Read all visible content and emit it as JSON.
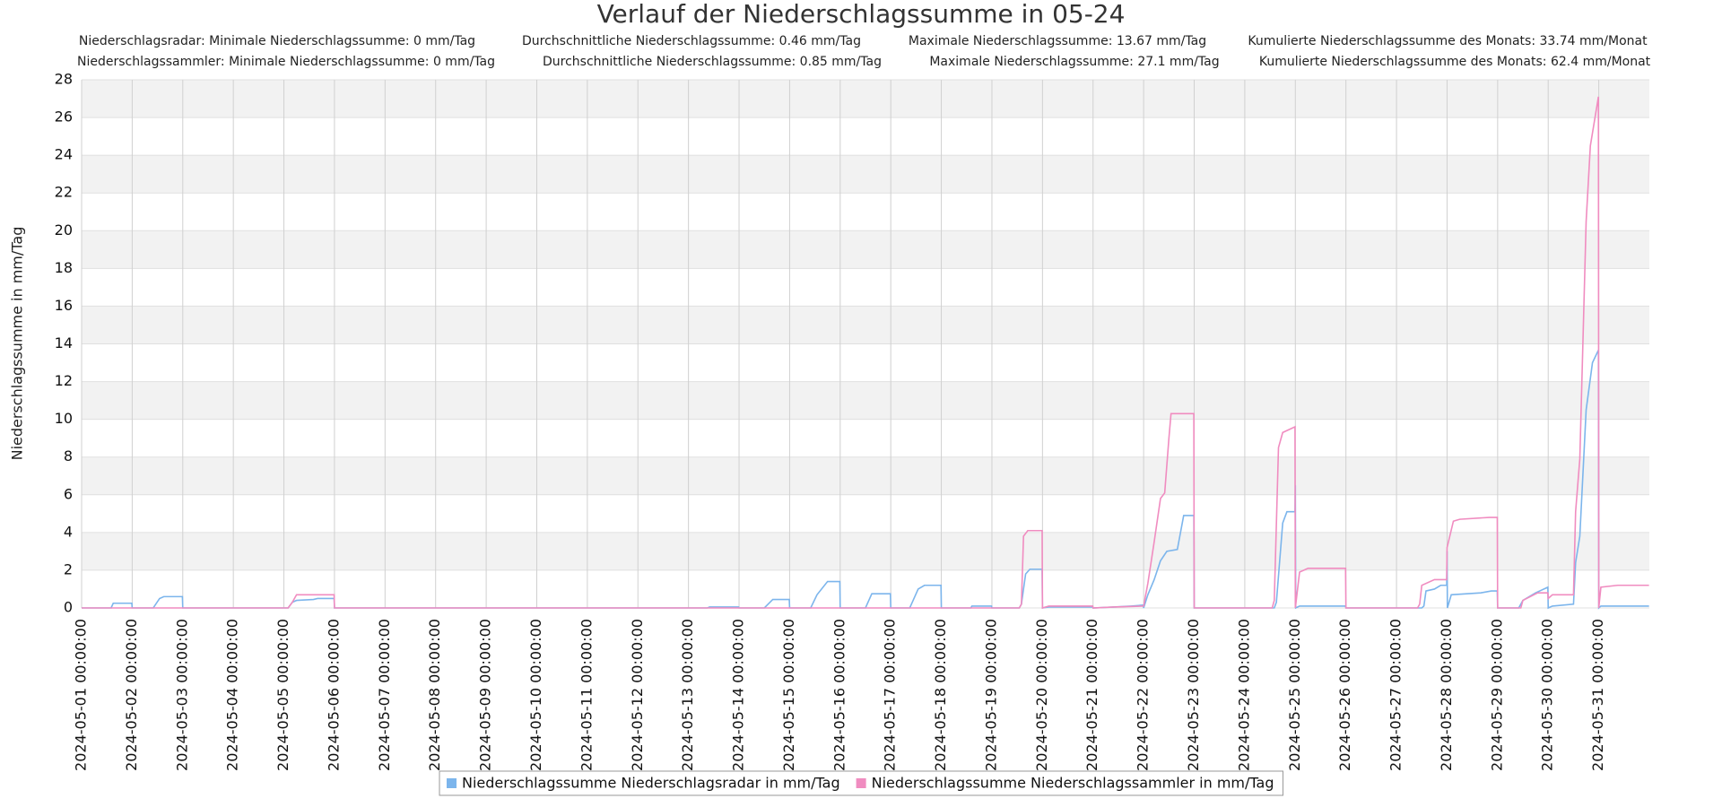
{
  "chart_data": {
    "type": "line",
    "title": "Verlauf der Niederschlagssumme in 05-24",
    "subtitle_lines": [
      [
        "Niederschlagsradar: Minimale Niederschlagssumme: 0 mm/Tag",
        "Durchschnittliche Niederschlagssumme: 0.46 mm/Tag",
        "Maximale Niederschlagssumme: 13.67 mm/Tag",
        "Kumulierte Niederschlagssumme des Monats: 33.74 mm/Monat"
      ],
      [
        "Niederschlagssammler: Minimale Niederschlagssumme: 0 mm/Tag",
        "Durchschnittliche Niederschlagssumme: 0.85 mm/Tag",
        "Maximale Niederschlagssumme: 27.1 mm/Tag",
        "Kumulierte Niederschlagssumme des Monats: 62.4 mm/Monat"
      ]
    ],
    "y_label": "Niederschlagssumme in mm/Tag",
    "ylim": [
      0,
      28
    ],
    "yticks": [
      0,
      2,
      4,
      6,
      8,
      10,
      12,
      14,
      16,
      18,
      20,
      22,
      24,
      26,
      28
    ],
    "xlim": [
      "2024-05-01 00:00:00",
      "2024-06-01 00:00:00"
    ],
    "xticks": [
      "2024-05-01 00:00:00",
      "2024-05-02 00:00:00",
      "2024-05-03 00:00:00",
      "2024-05-04 00:00:00",
      "2024-05-05 00:00:00",
      "2024-05-06 00:00:00",
      "2024-05-07 00:00:00",
      "2024-05-08 00:00:00",
      "2024-05-09 00:00:00",
      "2024-05-10 00:00:00",
      "2024-05-11 00:00:00",
      "2024-05-12 00:00:00",
      "2024-05-13 00:00:00",
      "2024-05-14 00:00:00",
      "2024-05-15 00:00:00",
      "2024-05-16 00:00:00",
      "2024-05-17 00:00:00",
      "2024-05-18 00:00:00",
      "2024-05-19 00:00:00",
      "2024-05-20 00:00:00",
      "2024-05-21 00:00:00",
      "2024-05-22 00:00:00",
      "2024-05-23 00:00:00",
      "2024-05-24 00:00:00",
      "2024-05-25 00:00:00",
      "2024-05-26 00:00:00",
      "2024-05-27 00:00:00",
      "2024-05-28 00:00:00",
      "2024-05-29 00:00:00",
      "2024-05-30 00:00:00",
      "2024-05-31 00:00:00"
    ],
    "grid": true,
    "band_color": "#f2f2f2",
    "legend": "bottom",
    "series": [
      {
        "name": "Niederschlagssumme Niederschlagsradar in mm/Tag",
        "color": "#7cb5ec",
        "x": [
          "2024-05-01 00:00:00",
          "2024-05-01 14:00:00",
          "2024-05-01 15:00:00",
          "2024-05-01 23:50:00",
          "2024-05-02 00:00:00",
          "2024-05-02 10:00:00",
          "2024-05-02 13:00:00",
          "2024-05-02 15:00:00",
          "2024-05-02 23:50:00",
          "2024-05-03 00:00:00",
          "2024-05-05 02:00:00",
          "2024-05-05 04:00:00",
          "2024-05-05 06:00:00",
          "2024-05-05 14:00:00",
          "2024-05-05 16:00:00",
          "2024-05-05 23:50:00",
          "2024-05-06 00:00:00",
          "2024-05-13 09:00:00",
          "2024-05-13 10:00:00",
          "2024-05-13 23:50:00",
          "2024-05-14 00:00:00",
          "2024-05-14 12:00:00",
          "2024-05-14 16:00:00",
          "2024-05-14 23:50:00",
          "2024-05-15 00:00:00",
          "2024-05-15 10:00:00",
          "2024-05-15 13:00:00",
          "2024-05-15 18:00:00",
          "2024-05-15 23:50:00",
          "2024-05-16 00:00:00",
          "2024-05-16 12:00:00",
          "2024-05-16 15:00:00",
          "2024-05-16 23:50:00",
          "2024-05-17 00:00:00",
          "2024-05-17 09:00:00",
          "2024-05-17 13:00:00",
          "2024-05-17 16:00:00",
          "2024-05-17 23:50:00",
          "2024-05-18 00:00:00",
          "2024-05-18 14:00:00",
          "2024-05-18 14:30:00",
          "2024-05-18 23:50:00",
          "2024-05-19 00:00:00",
          "2024-05-19 13:00:00",
          "2024-05-19 14:00:00",
          "2024-05-19 16:00:00",
          "2024-05-19 18:00:00",
          "2024-05-19 23:50:00",
          "2024-05-20 00:00:00",
          "2024-05-20 03:00:00",
          "2024-05-20 23:50:00",
          "2024-05-21 00:00:00",
          "2024-05-21 10:00:00",
          "2024-05-21 18:00:00",
          "2024-05-21 23:50:00",
          "2024-05-22 00:00:00",
          "2024-05-22 02:00:00",
          "2024-05-22 05:00:00",
          "2024-05-22 08:00:00",
          "2024-05-22 11:00:00",
          "2024-05-22 16:00:00",
          "2024-05-22 19:00:00",
          "2024-05-22 23:50:00",
          "2024-05-23 00:00:00",
          "2024-05-24 14:00:00",
          "2024-05-24 15:00:00",
          "2024-05-24 18:00:00",
          "2024-05-24 20:00:00",
          "2024-05-24 23:50:00",
          "2024-05-25 00:00:00",
          "2024-05-25 00:10:00",
          "2024-05-25 02:00:00",
          "2024-05-25 23:50:00",
          "2024-05-26 00:00:00",
          "2024-05-27 12:00:00",
          "2024-05-27 13:00:00",
          "2024-05-27 14:00:00",
          "2024-05-27 18:00:00",
          "2024-05-27 21:00:00",
          "2024-05-27 23:50:00",
          "2024-05-28 00:00:00",
          "2024-05-28 00:10:00",
          "2024-05-28 02:00:00",
          "2024-05-28 16:00:00",
          "2024-05-28 21:00:00",
          "2024-05-28 23:50:00",
          "2024-05-29 00:00:00",
          "2024-05-29 10:00:00",
          "2024-05-29 12:00:00",
          "2024-05-29 18:00:00",
          "2024-05-29 23:50:00",
          "2024-05-30 00:00:00",
          "2024-05-30 02:00:00",
          "2024-05-30 12:00:00",
          "2024-05-30 13:00:00",
          "2024-05-30 15:00:00",
          "2024-05-30 18:00:00",
          "2024-05-30 21:00:00",
          "2024-05-30 23:50:00",
          "2024-05-31 00:00:00",
          "2024-05-31 01:00:00",
          "2024-05-31 23:50:00"
        ],
        "values": [
          0,
          0,
          0.25,
          0.25,
          0,
          0,
          0.5,
          0.6,
          0.6,
          0,
          0,
          0.3,
          0.4,
          0.45,
          0.5,
          0.5,
          0,
          0,
          0.05,
          0.05,
          0,
          0,
          0.45,
          0.45,
          0,
          0,
          0.7,
          1.4,
          1.4,
          0,
          0,
          0.75,
          0.75,
          0,
          0,
          1.0,
          1.2,
          1.2,
          0,
          0,
          0.1,
          0.1,
          0,
          0,
          0.2,
          1.8,
          2.05,
          2.05,
          0,
          0.05,
          0.05,
          0,
          0.05,
          0.1,
          0.15,
          0,
          0.7,
          1.5,
          2.5,
          3.0,
          3.1,
          4.9,
          4.9,
          0,
          0,
          0.3,
          4.5,
          5.1,
          5.1,
          6.5,
          0,
          0.1,
          0.1,
          0,
          0,
          0.1,
          0.9,
          1.0,
          1.2,
          1.2,
          3.0,
          0,
          0.7,
          0.8,
          0.9,
          0.9,
          0,
          0,
          0.4,
          0.8,
          1.1,
          0,
          0.1,
          0.2,
          2.4,
          3.8,
          10.5,
          13.0,
          13.67,
          0,
          0.1,
          0.1
        ]
      },
      {
        "name": "Niederschlagssumme Niederschlagssammler in mm/Tag",
        "color": "#f08cc0",
        "x": [
          "2024-05-01 00:00:00",
          "2024-05-05 02:00:00",
          "2024-05-05 04:00:00",
          "2024-05-05 06:00:00",
          "2024-05-05 23:50:00",
          "2024-05-06 00:00:00",
          "2024-05-19 13:00:00",
          "2024-05-19 14:00:00",
          "2024-05-19 15:00:00",
          "2024-05-19 17:00:00",
          "2024-05-19 23:50:00",
          "2024-05-20 00:00:00",
          "2024-05-20 03:00:00",
          "2024-05-20 23:50:00",
          "2024-05-21 00:00:00",
          "2024-05-21 10:00:00",
          "2024-05-21 23:50:00",
          "2024-05-22 00:00:00",
          "2024-05-22 02:00:00",
          "2024-05-22 05:00:00",
          "2024-05-22 08:00:00",
          "2024-05-22 10:00:00",
          "2024-05-22 12:00:00",
          "2024-05-22 13:00:00",
          "2024-05-22 23:50:00",
          "2024-05-23 00:00:00",
          "2024-05-24 13:00:00",
          "2024-05-24 14:00:00",
          "2024-05-24 16:00:00",
          "2024-05-24 18:00:00",
          "2024-05-24 23:50:00",
          "2024-05-25 00:00:00",
          "2024-05-25 02:00:00",
          "2024-05-25 06:00:00",
          "2024-05-25 23:50:00",
          "2024-05-26 00:00:00",
          "2024-05-27 10:00:00",
          "2024-05-27 11:00:00",
          "2024-05-27 12:00:00",
          "2024-05-27 18:00:00",
          "2024-05-27 23:50:00",
          "2024-05-28 00:00:00",
          "2024-05-28 03:00:00",
          "2024-05-28 06:00:00",
          "2024-05-28 20:00:00",
          "2024-05-28 23:50:00",
          "2024-05-29 00:00:00",
          "2024-05-29 11:00:00",
          "2024-05-29 12:00:00",
          "2024-05-29 19:00:00",
          "2024-05-29 23:50:00",
          "2024-05-30 00:00:00",
          "2024-05-30 02:00:00",
          "2024-05-30 12:00:00",
          "2024-05-30 13:00:00",
          "2024-05-30 15:00:00",
          "2024-05-30 18:00:00",
          "2024-05-30 20:00:00",
          "2024-05-30 23:50:00",
          "2024-05-31 00:00:00",
          "2024-05-31 01:00:00",
          "2024-05-31 09:00:00",
          "2024-05-31 23:50:00"
        ],
        "values": [
          0,
          0,
          0.3,
          0.7,
          0.7,
          0,
          0,
          0.2,
          3.8,
          4.1,
          4.1,
          0,
          0.1,
          0.1,
          0,
          0.05,
          0.1,
          0.1,
          1.3,
          3.5,
          5.8,
          6.1,
          9.0,
          10.3,
          10.3,
          0,
          0,
          0.4,
          8.5,
          9.3,
          9.6,
          0,
          1.9,
          2.1,
          2.1,
          0,
          0,
          0.2,
          1.2,
          1.5,
          1.5,
          3.2,
          4.6,
          4.7,
          4.8,
          4.8,
          0,
          0,
          0.4,
          0.8,
          0.8,
          0.5,
          0.7,
          0.7,
          5.1,
          7.9,
          20.5,
          24.5,
          27.1,
          0,
          1.1,
          1.2,
          1.2
        ]
      }
    ]
  }
}
